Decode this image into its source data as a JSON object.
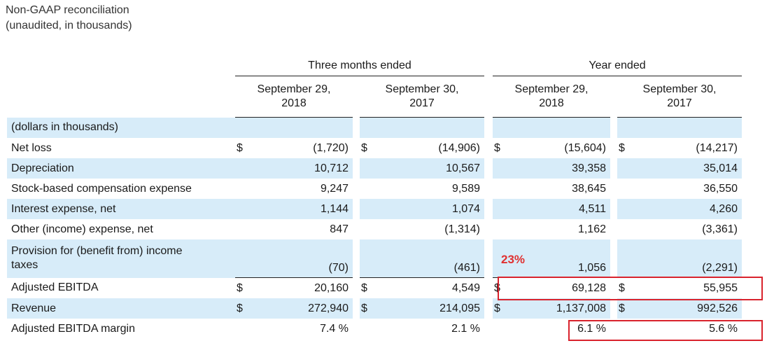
{
  "title_line1": "Non-GAAP reconciliation",
  "title_line2": "(unaudited, in thousands)",
  "groups": {
    "three_months": "Three months ended",
    "year": "Year ended"
  },
  "columns": [
    {
      "line1": "September 29,",
      "line2": "2018"
    },
    {
      "line1": "September 30,",
      "line2": "2017"
    },
    {
      "line1": "September 29,",
      "line2": "2018"
    },
    {
      "line1": "September 30,",
      "line2": "2017"
    }
  ],
  "rows": [
    {
      "label": "(dollars in thousands)",
      "cur": [
        "",
        "",
        "",
        ""
      ],
      "values": [
        "",
        "",
        "",
        ""
      ]
    },
    {
      "label": "Net loss",
      "cur": [
        "$",
        "$",
        "$",
        "$"
      ],
      "values": [
        "(1,720)",
        "(14,906)",
        "(15,604)",
        "(14,217)"
      ]
    },
    {
      "label": "Depreciation",
      "cur": [
        "",
        "",
        "",
        ""
      ],
      "values": [
        "10,712",
        "10,567",
        "39,358",
        "35,014"
      ]
    },
    {
      "label": "Stock-based compensation expense",
      "cur": [
        "",
        "",
        "",
        ""
      ],
      "values": [
        "9,247",
        "9,589",
        "38,645",
        "36,550"
      ]
    },
    {
      "label": "Interest expense, net",
      "cur": [
        "",
        "",
        "",
        ""
      ],
      "values": [
        "1,144",
        "1,074",
        "4,511",
        "4,260"
      ]
    },
    {
      "label": "Other (income) expense, net",
      "cur": [
        "",
        "",
        "",
        ""
      ],
      "values": [
        "847",
        "(1,314)",
        "1,162",
        "(3,361)"
      ]
    },
    {
      "label_line1": "Provision for (benefit from) income",
      "label_line2": "taxes",
      "cur": [
        "",
        "",
        "",
        ""
      ],
      "values": [
        "(70)",
        "(461)",
        "1,056",
        "(2,291)"
      ]
    },
    {
      "label": "Adjusted EBITDA",
      "cur": [
        "$",
        "$",
        "$",
        "$"
      ],
      "values": [
        "20,160",
        "4,549",
        "69,128",
        "55,955"
      ]
    },
    {
      "label": "Revenue",
      "cur": [
        "$",
        "$",
        "$",
        "$"
      ],
      "values": [
        "272,940",
        "214,095",
        "1,137,008",
        "992,526"
      ]
    },
    {
      "label": "Adjusted EBITDA margin",
      "cur": [
        "",
        "",
        "",
        ""
      ],
      "values": [
        "7.4 %",
        "2.1 %",
        "6.1 %",
        "5.6 %"
      ]
    }
  ],
  "annotation": {
    "text": "23%",
    "color": "#e03030"
  },
  "colors": {
    "row_shade": "#d7ecf9",
    "highlight": "#d9232d"
  }
}
